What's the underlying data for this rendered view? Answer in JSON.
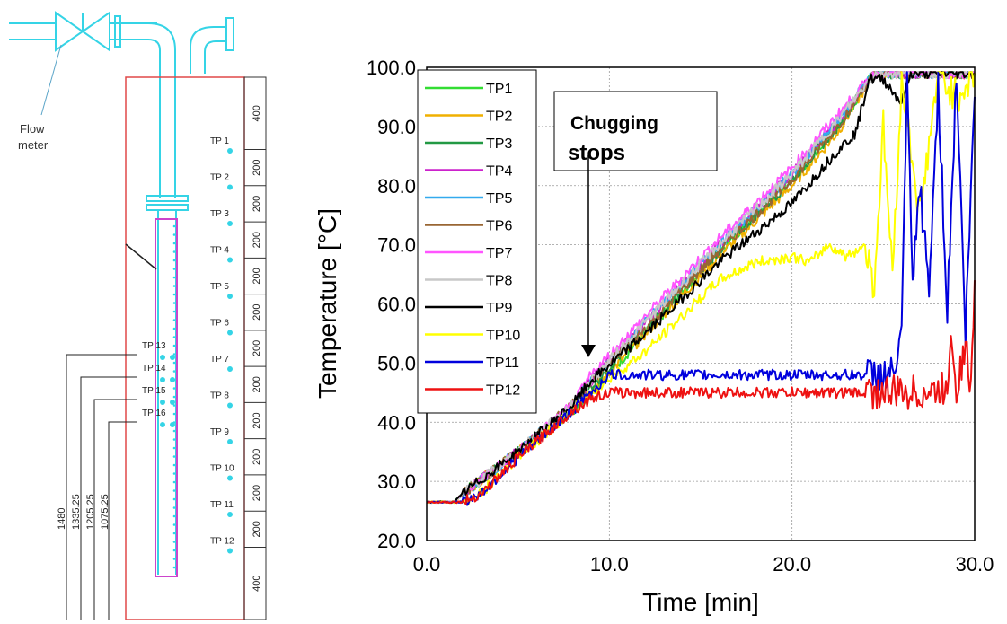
{
  "schematic": {
    "flow_meter_label": [
      "Flow",
      "meter"
    ],
    "tp_labels_right": [
      "TP 1",
      "TP 2",
      "TP 3",
      "TP 4",
      "TP 5",
      "TP 6",
      "TP 7",
      "TP 8",
      "TP 9",
      "TP 10",
      "TP 11",
      "TP 12"
    ],
    "tp_labels_left": [
      "TP 13",
      "TP 14",
      "TP 15",
      "TP 16"
    ],
    "dimensions": [
      "400",
      "200",
      "200",
      "200",
      "200",
      "200",
      "200",
      "200",
      "200",
      "200",
      "200",
      "200",
      "400"
    ],
    "depth_labels": [
      "1480",
      "1335.25",
      "1205.25",
      "1075.25"
    ]
  },
  "chart_data": {
    "type": "line",
    "xlabel": "Time [min]",
    "ylabel": "Temperature [°C]",
    "xlim": [
      0,
      30
    ],
    "ylim": [
      20,
      100
    ],
    "x_ticks": [
      "0.0",
      "10.0",
      "20.0",
      "30.0"
    ],
    "y_ticks": [
      "20.0",
      "30.0",
      "40.0",
      "50.0",
      "60.0",
      "70.0",
      "80.0",
      "90.0",
      "100.0"
    ],
    "grid": true,
    "legend_position": "top-left",
    "annotation": {
      "text": [
        "Chugging",
        "stops"
      ],
      "arrow_x": 9,
      "arrow_y_end": 51
    },
    "series": [
      {
        "name": "TP1",
        "color": "#33dd33",
        "points": [
          [
            0,
            26.5
          ],
          [
            1.5,
            26.5
          ],
          [
            2,
            28
          ],
          [
            5,
            35
          ],
          [
            8,
            42
          ],
          [
            9,
            45
          ],
          [
            12,
            55
          ],
          [
            16,
            69
          ],
          [
            20,
            81
          ],
          [
            22.5,
            90
          ],
          [
            24.5,
            99
          ],
          [
            30,
            99
          ]
        ]
      },
      {
        "name": "TP2",
        "color": "#f0b000",
        "points": [
          [
            0,
            26.5
          ],
          [
            1.5,
            26.5
          ],
          [
            2,
            28
          ],
          [
            5,
            35
          ],
          [
            8,
            42
          ],
          [
            9,
            45
          ],
          [
            12,
            55
          ],
          [
            16,
            68
          ],
          [
            20,
            80
          ],
          [
            22.5,
            89
          ],
          [
            24.5,
            99
          ],
          [
            30,
            99
          ]
        ]
      },
      {
        "name": "TP3",
        "color": "#229944",
        "points": [
          [
            0,
            26.5
          ],
          [
            1.5,
            26.5
          ],
          [
            2,
            28
          ],
          [
            5,
            35
          ],
          [
            8,
            42
          ],
          [
            9,
            46
          ],
          [
            12,
            56
          ],
          [
            16,
            69
          ],
          [
            20,
            81
          ],
          [
            22.5,
            90
          ],
          [
            24.5,
            99
          ],
          [
            30,
            99
          ]
        ]
      },
      {
        "name": "TP4",
        "color": "#cc22cc",
        "points": [
          [
            0,
            26.5
          ],
          [
            1.5,
            26.5
          ],
          [
            2,
            28
          ],
          [
            5,
            35
          ],
          [
            8,
            43
          ],
          [
            9,
            47
          ],
          [
            12,
            57
          ],
          [
            16,
            70
          ],
          [
            20,
            82
          ],
          [
            22.5,
            91
          ],
          [
            24.5,
            99
          ],
          [
            30,
            99
          ]
        ]
      },
      {
        "name": "TP5",
        "color": "#33aaee",
        "points": [
          [
            0,
            26.5
          ],
          [
            1.5,
            26.5
          ],
          [
            2,
            28
          ],
          [
            5,
            35
          ],
          [
            8,
            43
          ],
          [
            9,
            47
          ],
          [
            12,
            57
          ],
          [
            16,
            70
          ],
          [
            20,
            82
          ],
          [
            22.5,
            91
          ],
          [
            24.5,
            99
          ],
          [
            30,
            99
          ]
        ]
      },
      {
        "name": "TP6",
        "color": "#996633",
        "points": [
          [
            0,
            26.5
          ],
          [
            1.5,
            26.5
          ],
          [
            2,
            28
          ],
          [
            5,
            35
          ],
          [
            8,
            43
          ],
          [
            9,
            47
          ],
          [
            12,
            56
          ],
          [
            16,
            69
          ],
          [
            20,
            81
          ],
          [
            22.5,
            90
          ],
          [
            24.5,
            99
          ],
          [
            30,
            99
          ]
        ]
      },
      {
        "name": "TP7",
        "color": "#ff55ff",
        "points": [
          [
            0,
            26.5
          ],
          [
            1.5,
            26.5
          ],
          [
            2,
            28
          ],
          [
            5,
            35
          ],
          [
            8,
            43
          ],
          [
            9,
            48
          ],
          [
            12,
            58
          ],
          [
            16,
            71
          ],
          [
            20,
            83
          ],
          [
            22.5,
            92
          ],
          [
            24.5,
            99
          ],
          [
            30,
            99
          ]
        ]
      },
      {
        "name": "TP8",
        "color": "#c8c8c8",
        "points": [
          [
            0,
            26.5
          ],
          [
            1.5,
            26.5
          ],
          [
            2,
            28
          ],
          [
            5,
            35
          ],
          [
            8,
            43
          ],
          [
            9,
            47
          ],
          [
            12,
            57
          ],
          [
            16,
            70
          ],
          [
            20,
            82
          ],
          [
            22.5,
            91
          ],
          [
            24.5,
            99
          ],
          [
            30,
            99
          ]
        ]
      },
      {
        "name": "TP9",
        "color": "#000000",
        "points": [
          [
            0,
            26.5
          ],
          [
            1.5,
            26.5
          ],
          [
            2,
            28
          ],
          [
            5,
            35
          ],
          [
            8,
            43
          ],
          [
            9,
            47
          ],
          [
            12,
            55
          ],
          [
            16,
            67
          ],
          [
            20,
            77
          ],
          [
            22.5,
            86
          ],
          [
            23.5,
            89
          ],
          [
            24.2,
            98
          ],
          [
            25,
            98
          ],
          [
            26,
            94
          ],
          [
            26.5,
            99
          ],
          [
            30,
            99
          ]
        ]
      },
      {
        "name": "TP10",
        "color": "#ffff00",
        "points": [
          [
            0,
            26.5
          ],
          [
            2,
            26.5
          ],
          [
            3,
            28
          ],
          [
            5,
            34
          ],
          [
            8,
            42
          ],
          [
            9,
            45
          ],
          [
            12,
            52
          ],
          [
            14,
            58
          ],
          [
            16,
            64
          ],
          [
            18,
            67
          ],
          [
            20,
            68
          ],
          [
            21,
            67
          ],
          [
            22,
            70
          ],
          [
            23,
            68
          ],
          [
            24,
            70
          ],
          [
            24.5,
            63
          ],
          [
            25,
            90
          ],
          [
            25.5,
            65
          ],
          [
            26,
            98
          ],
          [
            27,
            75
          ],
          [
            28,
            99
          ],
          [
            29,
            95
          ],
          [
            30,
            99
          ]
        ]
      },
      {
        "name": "TP11",
        "color": "#0000dd",
        "points": [
          [
            0,
            26.5
          ],
          [
            2,
            26.5
          ],
          [
            3,
            28
          ],
          [
            5,
            34
          ],
          [
            8,
            42
          ],
          [
            9,
            45
          ],
          [
            10,
            48
          ],
          [
            12,
            48
          ],
          [
            16,
            48
          ],
          [
            20,
            48
          ],
          [
            24,
            48
          ],
          [
            25.5,
            48
          ],
          [
            26,
            54
          ],
          [
            26.3,
            98
          ],
          [
            26.6,
            63
          ],
          [
            27,
            80
          ],
          [
            27.5,
            62
          ],
          [
            28,
            97
          ],
          [
            28.5,
            59
          ],
          [
            29,
            99
          ],
          [
            29.5,
            55
          ],
          [
            30,
            95
          ]
        ]
      },
      {
        "name": "TP12",
        "color": "#ee1111",
        "points": [
          [
            0,
            26.5
          ],
          [
            2,
            26.5
          ],
          [
            3,
            28
          ],
          [
            5,
            34
          ],
          [
            8,
            42
          ],
          [
            9,
            44
          ],
          [
            10,
            45
          ],
          [
            12,
            45
          ],
          [
            16,
            45
          ],
          [
            20,
            45
          ],
          [
            24,
            45
          ],
          [
            28,
            45
          ],
          [
            28.5,
            46
          ],
          [
            28.7,
            56
          ],
          [
            29,
            46
          ],
          [
            29.5,
            53
          ],
          [
            29.8,
            45
          ],
          [
            30,
            64
          ]
        ]
      }
    ]
  }
}
